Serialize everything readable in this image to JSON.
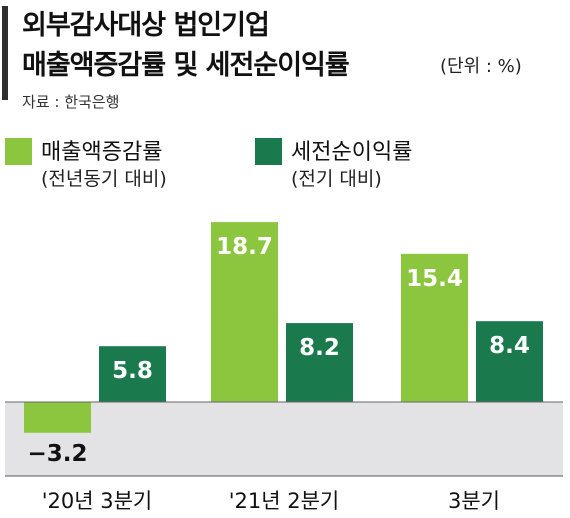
{
  "title_line1": "외부감사대상 법인기업",
  "title_line2": "매출액증감률 및 세전순이익률",
  "unit": "(단위 : %)",
  "source": "자료 : 한국은행",
  "legend": [
    {
      "name": "매출액증감률",
      "sub": "(전년동기 대비)"
    },
    {
      "name": "세전순이익률",
      "sub": "(전기 대비)"
    }
  ],
  "colors": {
    "sales": "#8cc63f",
    "profit": "#1b7a4d",
    "negative_bg": "#e3e3e5",
    "title_bar": "#2f2f2f"
  },
  "chart_data": {
    "type": "bar",
    "categories": [
      "'20년 3분기",
      "'21년 2분기",
      "3분기"
    ],
    "series": [
      {
        "name": "매출액증감률",
        "values": [
          -3.2,
          18.7,
          15.4
        ],
        "labels": [
          "−3.2",
          "18.7",
          "15.4"
        ]
      },
      {
        "name": "세전순이익률",
        "values": [
          5.8,
          8.2,
          8.4
        ],
        "labels": [
          "5.8",
          "8.2",
          "8.4"
        ]
      }
    ],
    "ylim": [
      -4.5,
      19.5
    ]
  }
}
